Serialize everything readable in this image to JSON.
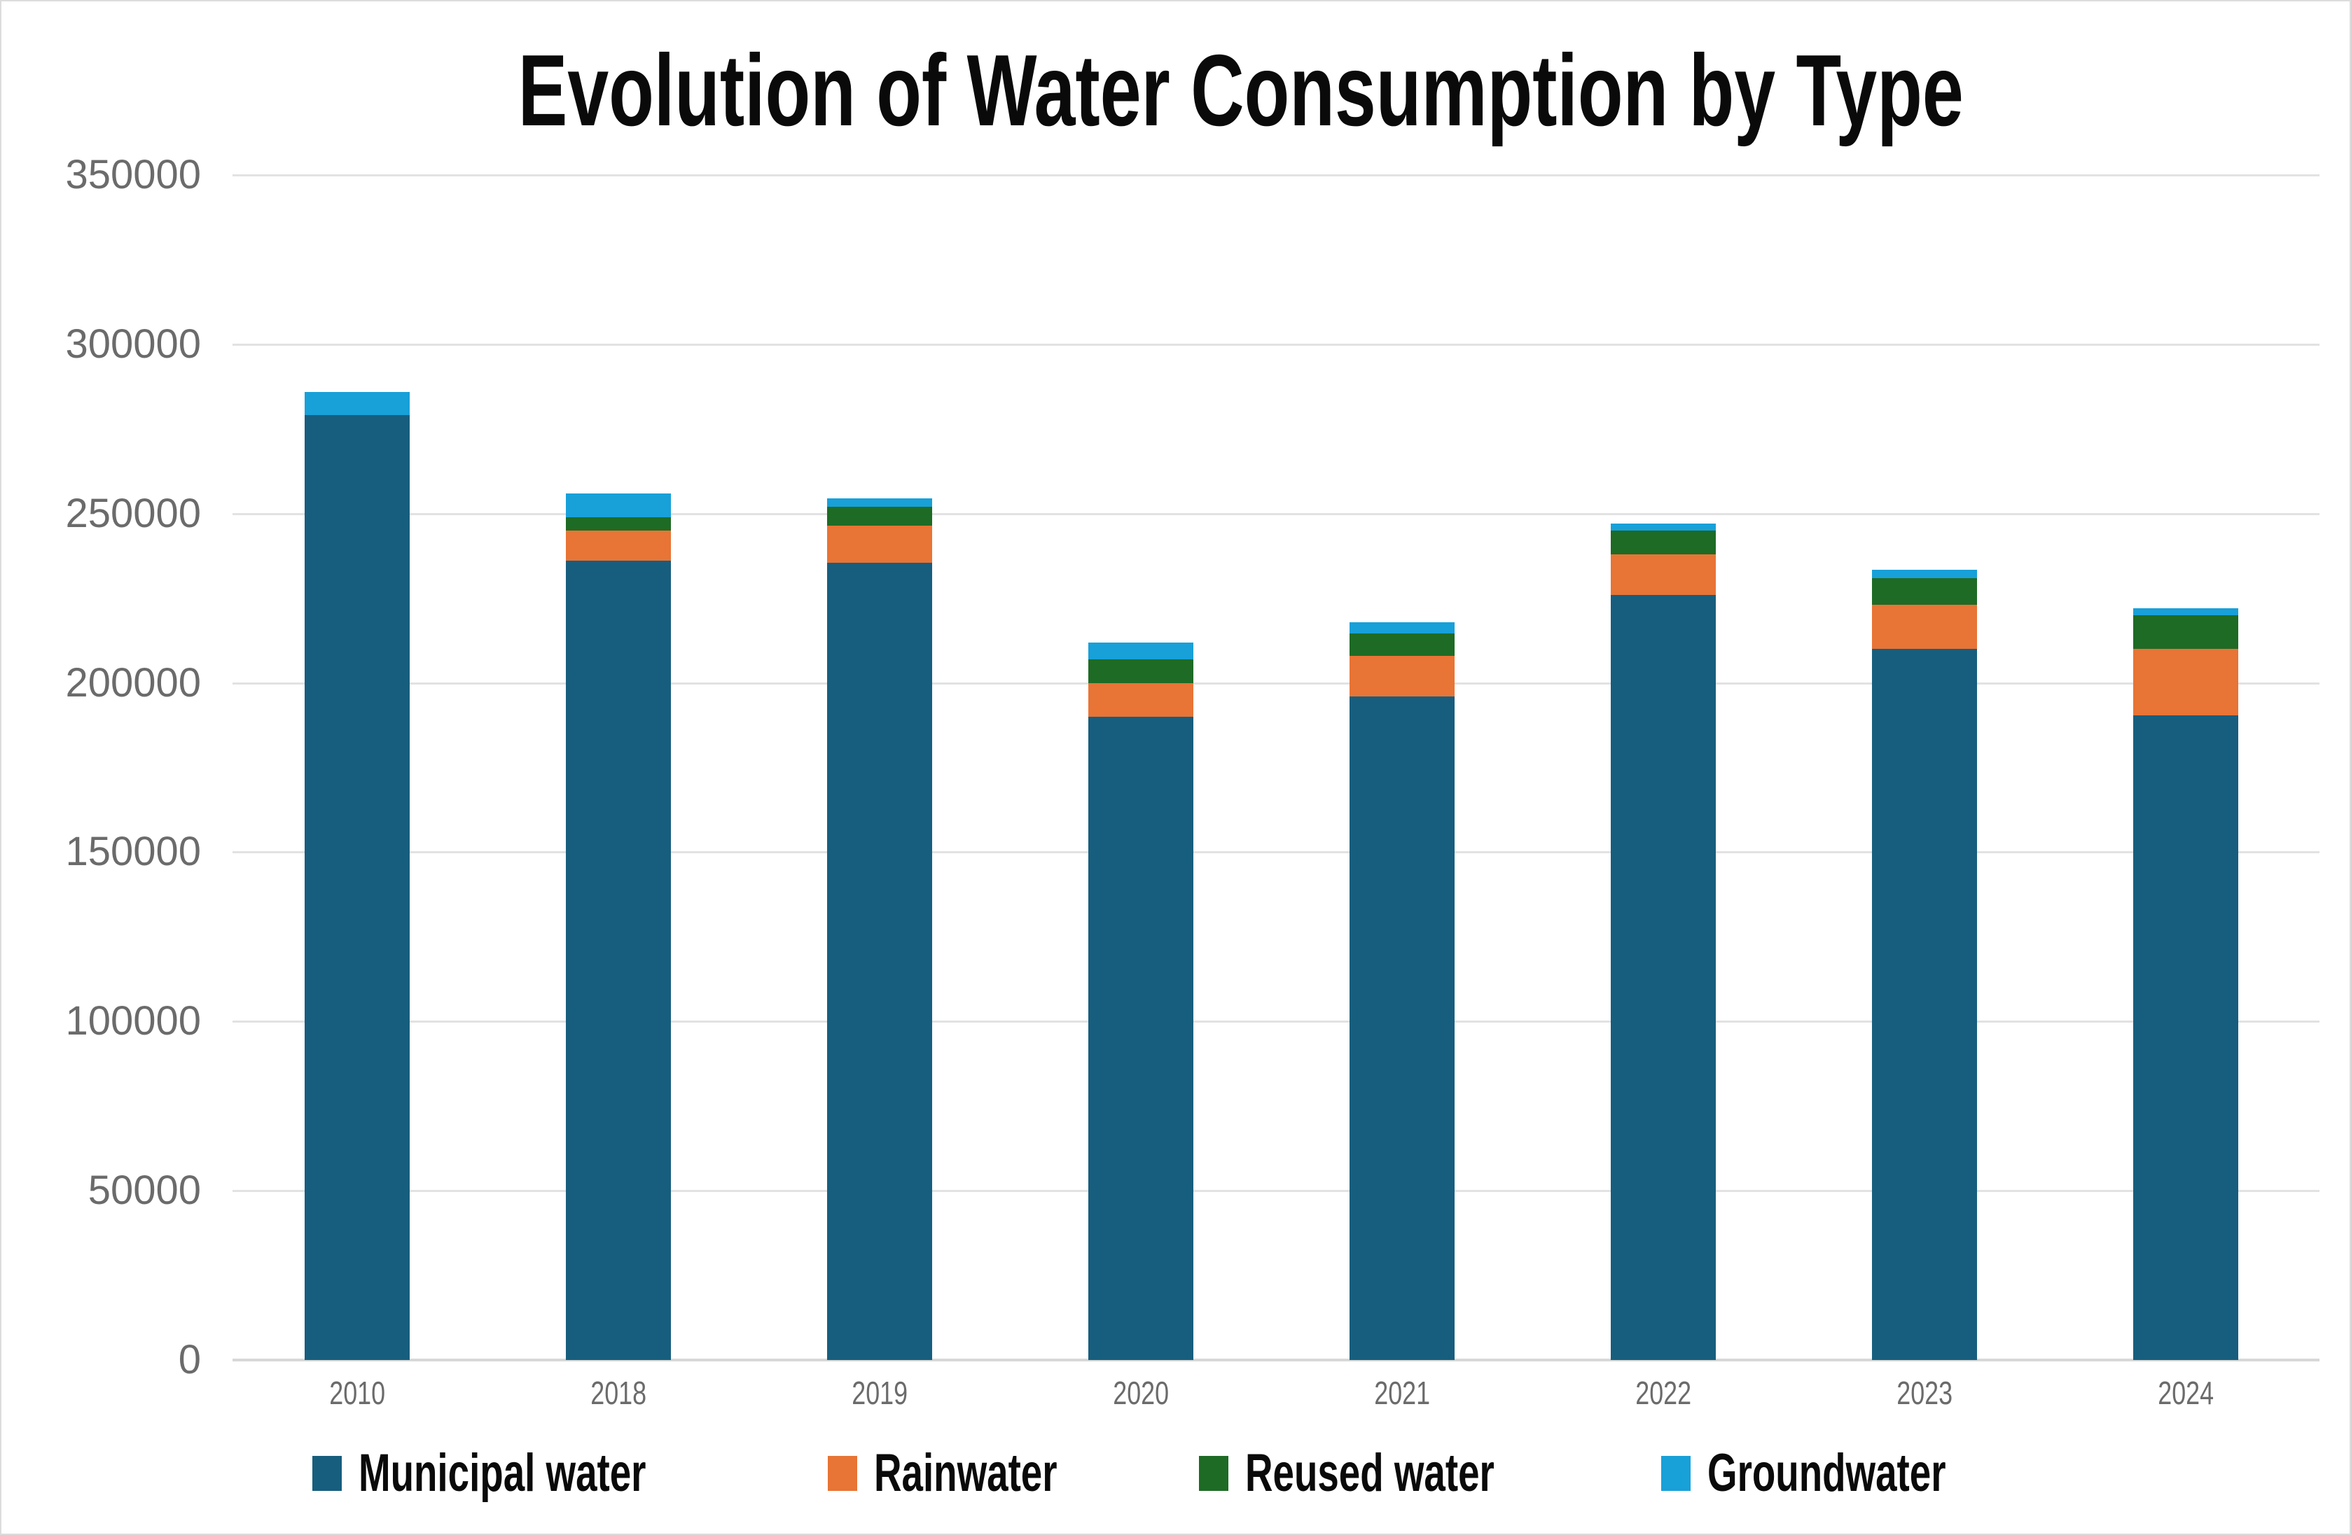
{
  "page": {
    "title": "Evolution of Water Consumption by Type"
  },
  "chart_data": {
    "type": "bar",
    "stacked": true,
    "title": "Evolution of Water Consumption by Type",
    "categories": [
      "2010",
      "2018",
      "2019",
      "2020",
      "2021",
      "2022",
      "2023",
      "2024"
    ],
    "series": [
      {
        "name": "Municipal water",
        "color": "#175E7E",
        "values": [
          279000,
          236000,
          235500,
          190000,
          196000,
          226000,
          210000,
          190500
        ]
      },
      {
        "name": "Rainwater",
        "color": "#E87435",
        "values": [
          0,
          9000,
          11000,
          10000,
          12000,
          12000,
          13000,
          19500
        ]
      },
      {
        "name": "Reused water",
        "color": "#1E6B25",
        "values": [
          0,
          4000,
          5500,
          7000,
          6500,
          7000,
          8000,
          10000
        ]
      },
      {
        "name": "Groundwater",
        "color": "#18A0D9",
        "values": [
          7000,
          7000,
          2500,
          5000,
          3500,
          2000,
          2500,
          2000
        ]
      }
    ],
    "totals": [
      286000,
      256000,
      254500,
      212000,
      218000,
      247000,
      233500,
      222000
    ],
    "ylim": [
      0,
      350000
    ],
    "y_ticks": [
      0,
      50000,
      100000,
      150000,
      200000,
      250000,
      300000,
      350000
    ],
    "grid": true,
    "legend_position": "bottom"
  },
  "style": {
    "grid_color": "#E2E2E2",
    "axis_line_color": "#D8D8D8",
    "tick_label_color": "#6B6B6B",
    "title_color": "#0A0A0A",
    "background": "#FFFFFF"
  }
}
